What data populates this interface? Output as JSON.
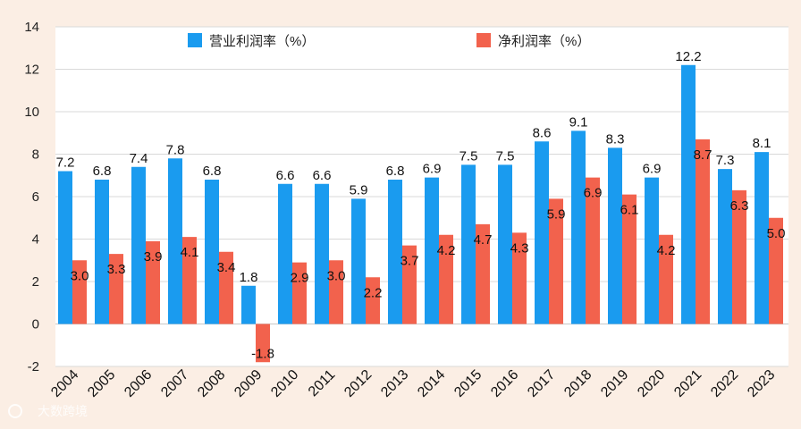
{
  "chart_data": {
    "type": "bar",
    "title": "",
    "xlabel": "",
    "ylabel": "",
    "ylim": [
      -2,
      14
    ],
    "yticks": [
      -2,
      0,
      2,
      4,
      6,
      8,
      10,
      12,
      14
    ],
    "grid": true,
    "legend_position": "top",
    "categories": [
      "2004",
      "2005",
      "2006",
      "2007",
      "2008",
      "2009",
      "2010",
      "2011",
      "2012",
      "2013",
      "2014",
      "2015",
      "2016",
      "2017",
      "2018",
      "2019",
      "2020",
      "2021",
      "2022",
      "2023"
    ],
    "series": [
      {
        "name": "营业利润率（%）",
        "color": "#1a9bef",
        "values": [
          7.2,
          6.8,
          7.4,
          7.8,
          6.8,
          1.8,
          6.6,
          6.6,
          5.9,
          6.8,
          6.9,
          7.5,
          7.5,
          8.6,
          9.1,
          8.3,
          6.9,
          12.2,
          7.3,
          8.1
        ],
        "labels": [
          "7.2",
          "6.8",
          "7.4",
          "7.8",
          "6.8",
          "1.8",
          "6.6",
          "6.6",
          "5.9",
          "6.8",
          "6.9",
          "7.5",
          "7.5",
          "8.6",
          "9.1",
          "8.3",
          "6.9",
          "12.2",
          "7.3",
          "8.1"
        ]
      },
      {
        "name": "净利润率（%）",
        "color": "#f2624d",
        "values": [
          3.0,
          3.3,
          3.9,
          4.1,
          3.4,
          -1.8,
          2.9,
          3.0,
          2.2,
          3.7,
          4.2,
          4.7,
          4.3,
          5.9,
          6.9,
          6.1,
          4.2,
          8.7,
          6.3,
          5.0
        ],
        "labels": [
          "3.0",
          "3.3",
          "3.9",
          "4.1",
          "3.4",
          "-1.8",
          "2.9",
          "3.0",
          "2.2",
          "3.7",
          "4.2",
          "4.7",
          "4.3",
          "5.9",
          "6.9",
          "6.1",
          "4.2",
          "8.7",
          "6.3",
          "5.0"
        ]
      }
    ]
  },
  "watermark": {
    "text": "大数跨境"
  }
}
